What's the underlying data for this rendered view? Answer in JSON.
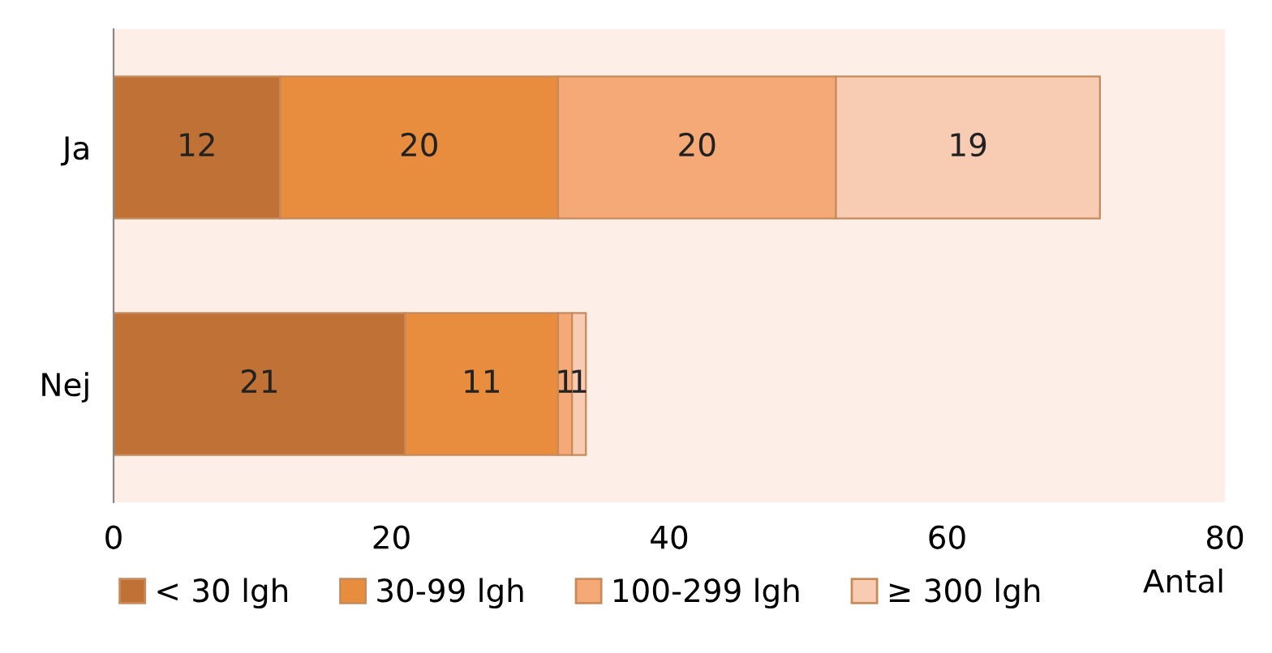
{
  "chart_data": {
    "type": "bar",
    "orientation": "horizontal",
    "stacked": true,
    "categories": [
      "Ja",
      "Nej"
    ],
    "series": [
      {
        "name": "< 30 lgh",
        "color": "#c07236",
        "values": [
          12,
          21
        ]
      },
      {
        "name": "30-99 lgh",
        "color": "#e88c3e",
        "values": [
          20,
          11
        ]
      },
      {
        "name": "100-299 lgh",
        "color": "#f4a977",
        "values": [
          20,
          1
        ]
      },
      {
        "name": "≥ 300 lgh",
        "color": "#f8cbb3",
        "values": [
          19,
          1
        ]
      }
    ],
    "xlabel": "Antal",
    "xlim": [
      0,
      80
    ],
    "xticks": [
      0,
      20,
      40,
      60,
      80
    ],
    "data_labels": true,
    "grid": false,
    "legend": "bottom"
  }
}
